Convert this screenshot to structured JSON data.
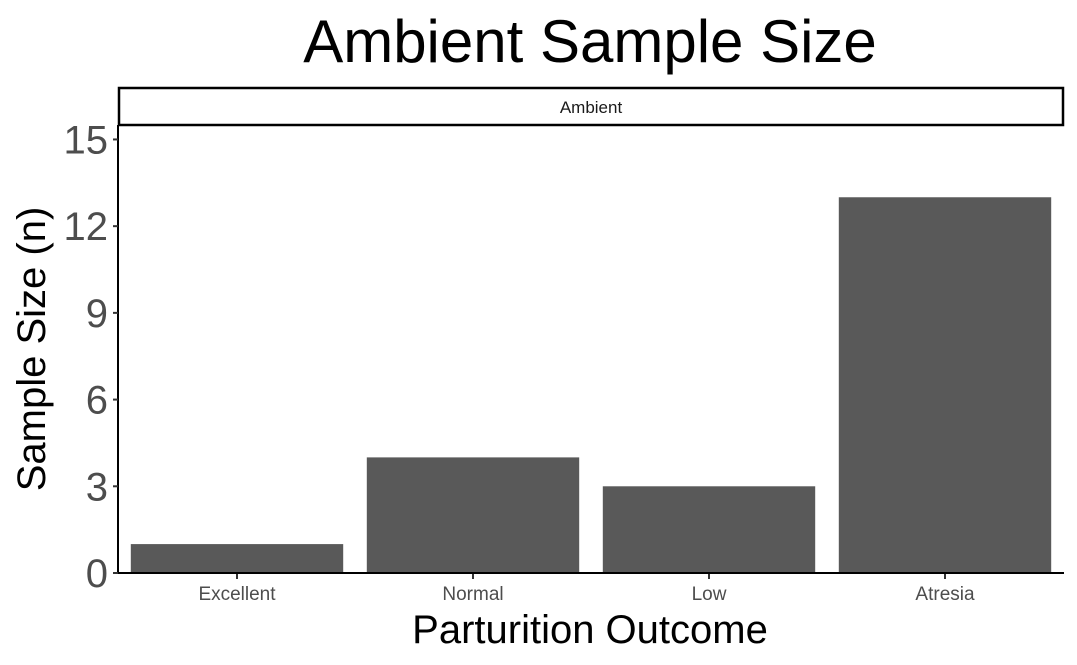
{
  "chart_data": {
    "type": "bar",
    "title": "Ambient Sample Size",
    "facet_label": "Ambient",
    "xlabel": "Parturition Outcome",
    "ylabel": "Sample Size (n)",
    "categories": [
      "Excellent",
      "Normal",
      "Low",
      "Atresia"
    ],
    "values": [
      1,
      4,
      3,
      13
    ],
    "ylim": [
      0,
      15.5
    ],
    "yticks": [
      0,
      3,
      6,
      9,
      12,
      15
    ],
    "grid": false,
    "bar_color": "#595959",
    "legend": "none"
  }
}
